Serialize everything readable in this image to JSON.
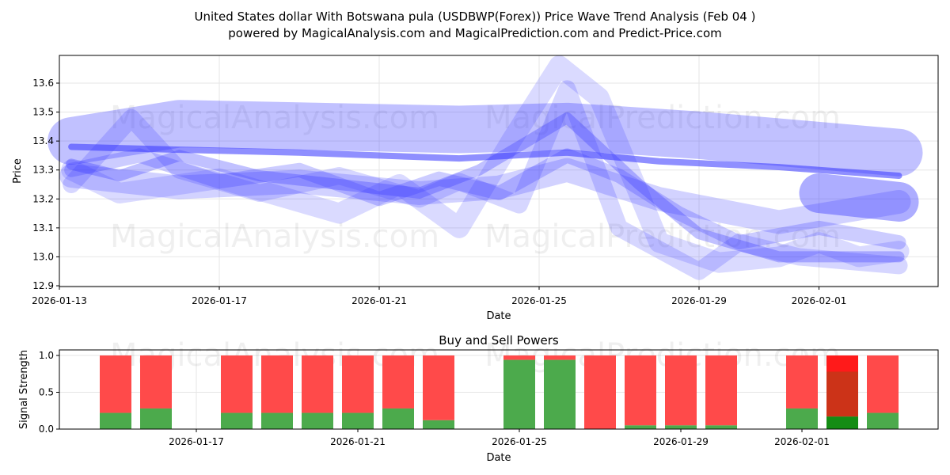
{
  "chart_data": [
    {
      "type": "line",
      "title": "United States dollar With Botswana pula (USDBWP(Forex)) Price Wave Trend Analysis (Feb 04 )",
      "subtitle": "powered by MagicalAnalysis.com and MagicalPrediction.com and Predict-Price.com",
      "xlabel": "Date",
      "ylabel": "Price",
      "xlim": [
        "2026-01-13",
        "2026-02-03.7"
      ],
      "ylim": [
        12.9,
        13.7
      ],
      "x_ticks": [
        "2026-01-13",
        "2026-01-17",
        "2026-01-21",
        "2026-01-25",
        "2026-01-29",
        "2026-02-01"
      ],
      "y_ticks": [
        "12.9",
        "13.0",
        "13.1",
        "13.2",
        "13.3",
        "13.4",
        "13.5",
        "13.6"
      ],
      "grid": true,
      "watermarks": [
        "MagicalAnalysis.com",
        "MagicalPrediction.com"
      ],
      "series": [
        {
          "name": "wave-envelope-upper",
          "width": 60,
          "opacity": 0.3,
          "x": [
            0.3,
            3,
            10,
            12.7,
            16,
            21
          ],
          "y": [
            13.4,
            13.46,
            13.44,
            13.45,
            13.42,
            13.36
          ]
        },
        {
          "name": "wave-1",
          "width": 26,
          "opacity": 0.18,
          "x": [
            0.3,
            1.5,
            4,
            7,
            8.5,
            10,
            11.3,
            12.5,
            13.5,
            15,
            16.5,
            18,
            19,
            20,
            21
          ],
          "y": [
            13.3,
            13.22,
            13.27,
            13.15,
            13.25,
            13.1,
            13.4,
            13.66,
            13.55,
            13.05,
            12.98,
            13.0,
            13.05,
            13.0,
            13.02
          ]
        },
        {
          "name": "wave-2",
          "width": 22,
          "opacity": 0.2,
          "x": [
            0.3,
            1.8,
            3,
            5,
            7,
            9,
            10,
            11.5,
            12.7,
            14,
            16,
            17,
            18.5,
            21
          ],
          "y": [
            13.25,
            13.48,
            13.3,
            13.22,
            13.28,
            13.2,
            13.26,
            13.18,
            13.58,
            13.1,
            12.95,
            13.05,
            13.0,
            12.97
          ]
        },
        {
          "name": "wave-3",
          "width": 18,
          "opacity": 0.25,
          "x": [
            0.3,
            2,
            4,
            6,
            8,
            9.5,
            11,
            12.7,
            14,
            15.5,
            17,
            19,
            21
          ],
          "y": [
            13.3,
            13.35,
            13.26,
            13.3,
            13.2,
            13.27,
            13.22,
            13.35,
            13.28,
            13.15,
            13.05,
            13.1,
            13.05
          ]
        },
        {
          "name": "wave-4",
          "width": 30,
          "opacity": 0.22,
          "x": [
            0.3,
            3,
            6,
            9,
            11,
            12.7,
            15,
            18,
            21
          ],
          "y": [
            13.28,
            13.24,
            13.26,
            13.22,
            13.24,
            13.3,
            13.2,
            13.12,
            13.19
          ]
        },
        {
          "name": "wave-5",
          "width": 14,
          "opacity": 0.3,
          "x": [
            0.3,
            1.5,
            3,
            5,
            7,
            9,
            10.5,
            12.7,
            14.5,
            16,
            18,
            21
          ],
          "y": [
            13.32,
            13.28,
            13.35,
            13.28,
            13.25,
            13.22,
            13.3,
            13.48,
            13.25,
            13.08,
            13.0,
            13.0
          ]
        },
        {
          "name": "wave-mean",
          "width": 8,
          "opacity": 0.55,
          "x": [
            0.3,
            3,
            6,
            10,
            12.7,
            15,
            18,
            21
          ],
          "y": [
            13.38,
            13.37,
            13.36,
            13.34,
            13.36,
            13.33,
            13.31,
            13.28
          ]
        },
        {
          "name": "wave-end-cap",
          "width": 50,
          "opacity": 0.4,
          "x": [
            19,
            21
          ],
          "y": [
            13.22,
            13.19
          ]
        }
      ]
    },
    {
      "type": "bar",
      "title": "Buy and Sell Powers",
      "xlabel": "Date",
      "ylabel": "Signal Strength",
      "ylim": [
        0,
        1.05
      ],
      "y_ticks": [
        "0.0",
        "0.5",
        "1.0"
      ],
      "x_ticks": [
        "2026-01-17",
        "2026-01-21",
        "2026-01-25",
        "2026-01-29",
        "2026-02-01"
      ],
      "categories": [
        "2026-01-15",
        "2026-01-16",
        "2026-01-18",
        "2026-01-19",
        "2026-01-20",
        "2026-01-21",
        "2026-01-22",
        "2026-01-23",
        "2026-01-25",
        "2026-01-26",
        "2026-01-27",
        "2026-01-28",
        "2026-01-29",
        "2026-01-30",
        "2026-02-01",
        "2026-02-02",
        "2026-02-03"
      ],
      "series": [
        {
          "name": "Buy",
          "color": "#4caa4c",
          "values": [
            0.22,
            0.28,
            0.22,
            0.22,
            0.22,
            0.22,
            0.28,
            0.12,
            0.94,
            0.94,
            0.0,
            0.05,
            0.05,
            0.05,
            0.28,
            0.17,
            0.22
          ]
        },
        {
          "name": "Sell",
          "color": "#ff4a4a",
          "values": [
            0.78,
            0.72,
            0.78,
            0.78,
            0.78,
            0.78,
            0.72,
            0.88,
            0.06,
            0.06,
            1.0,
            0.95,
            0.95,
            0.95,
            0.72,
            0.83,
            0.78
          ]
        }
      ],
      "highlight": {
        "date": "2026-02-02",
        "buy_color": "#148c14",
        "mid_color": "#cc3318",
        "mid_top": 0.78,
        "sell_color": "#ff1a1a"
      }
    }
  ]
}
